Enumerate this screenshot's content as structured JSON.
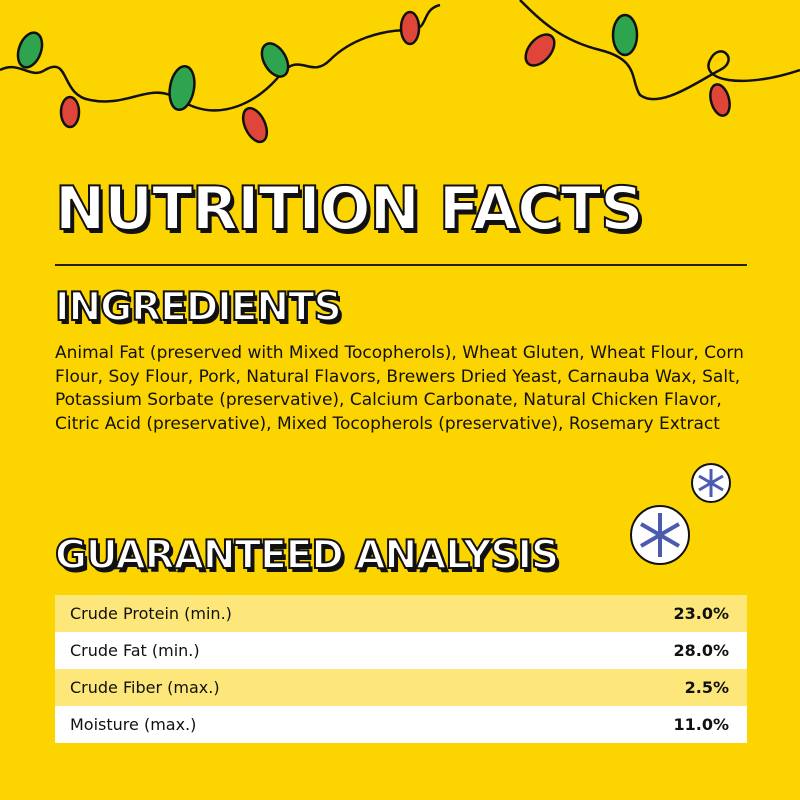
{
  "title": "NUTRITION FACTS",
  "ingredients": {
    "heading": "INGREDIENTS",
    "text": "Animal Fat (preserved with Mixed Tocopherols), Wheat Gluten, Wheat Flour, Corn Flour, Soy Flour, Pork, Natural Flavors, Brewers Dried Yeast, Carnauba Wax, Salt, Potassium Sorbate (preservative), Calcium Carbonate, Natural Chicken Flavor, Citric Acid (preservative), Mixed Tocopherols (preservative), Rosemary Extract"
  },
  "analysis": {
    "heading": "GUARANTEED ANALYSIS",
    "rows": [
      [
        "Crude Protein (min.)",
        "23.0%"
      ],
      [
        "Crude Fat (min.)",
        "28.0%"
      ],
      [
        "Crude Fiber (max.)",
        "2.5%"
      ],
      [
        "Moisture (max.)",
        "11.0%"
      ]
    ]
  }
}
